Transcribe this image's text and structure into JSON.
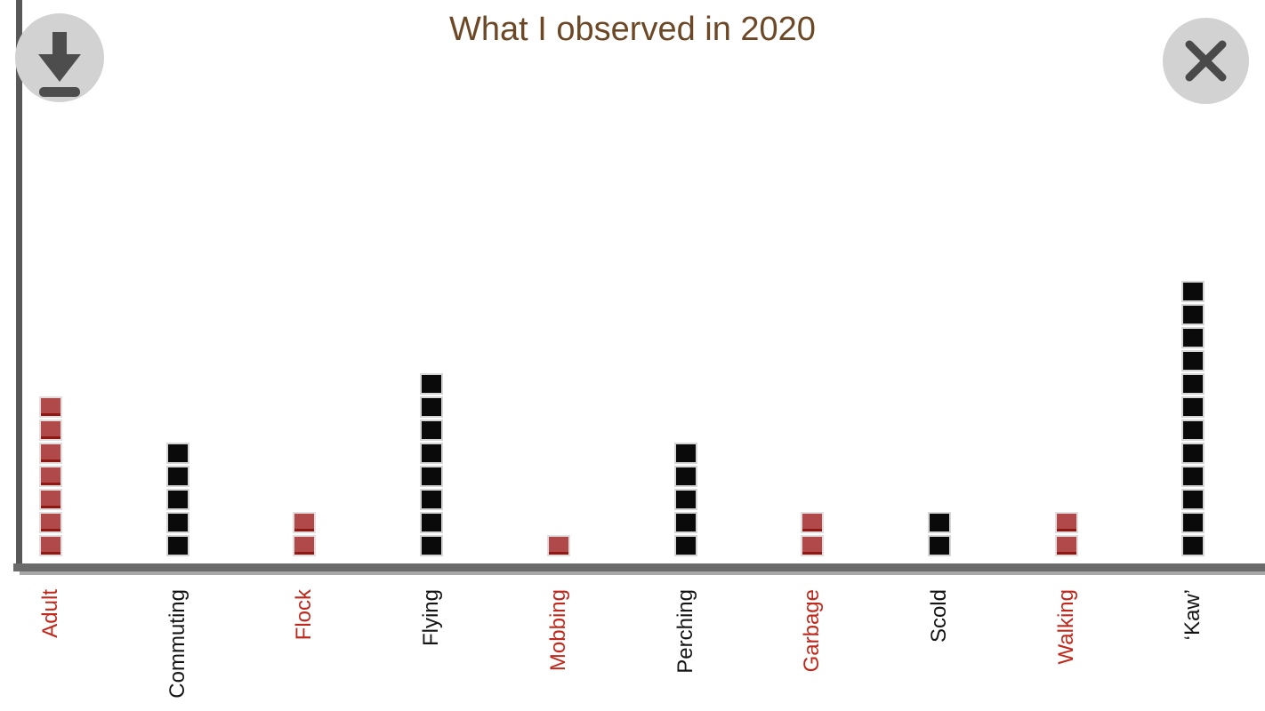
{
  "dialog": {
    "icons": {
      "download": "download-arrow",
      "close": "x"
    },
    "colors": {
      "icon_circle_bg": "#d2d2d2",
      "icon_glyph": "#4d4d4d"
    }
  },
  "chart_data": {
    "type": "bar",
    "variant": "unit_square_stack",
    "title": "What I observed in 2020",
    "title_color": "#6d4826",
    "categories": [
      "Adult",
      "Commuting",
      "Flock",
      "Flying",
      "Mobbing",
      "Perching",
      "Garbage",
      "Scold",
      "Walking",
      "‘Kaw’"
    ],
    "values": [
      7,
      5,
      2,
      8,
      1,
      5,
      2,
      2,
      2,
      12
    ],
    "bar_colors": [
      "#b04a4a",
      "#0a0a0a",
      "#b04a4a",
      "#0a0a0a",
      "#b04a4a",
      "#0a0a0a",
      "#b04a4a",
      "#0a0a0a",
      "#b04a4a",
      "#0a0a0a"
    ],
    "label_colors": [
      "#c0281c",
      "#141414",
      "#c0281c",
      "#141414",
      "#c0281c",
      "#141414",
      "#c0281c",
      "#141414",
      "#c0281c",
      "#141414"
    ],
    "xlabel": "",
    "ylabel": "",
    "ylim": [
      0,
      12
    ],
    "grid": false,
    "legend": false,
    "axis_color": "#5f5f5f"
  }
}
